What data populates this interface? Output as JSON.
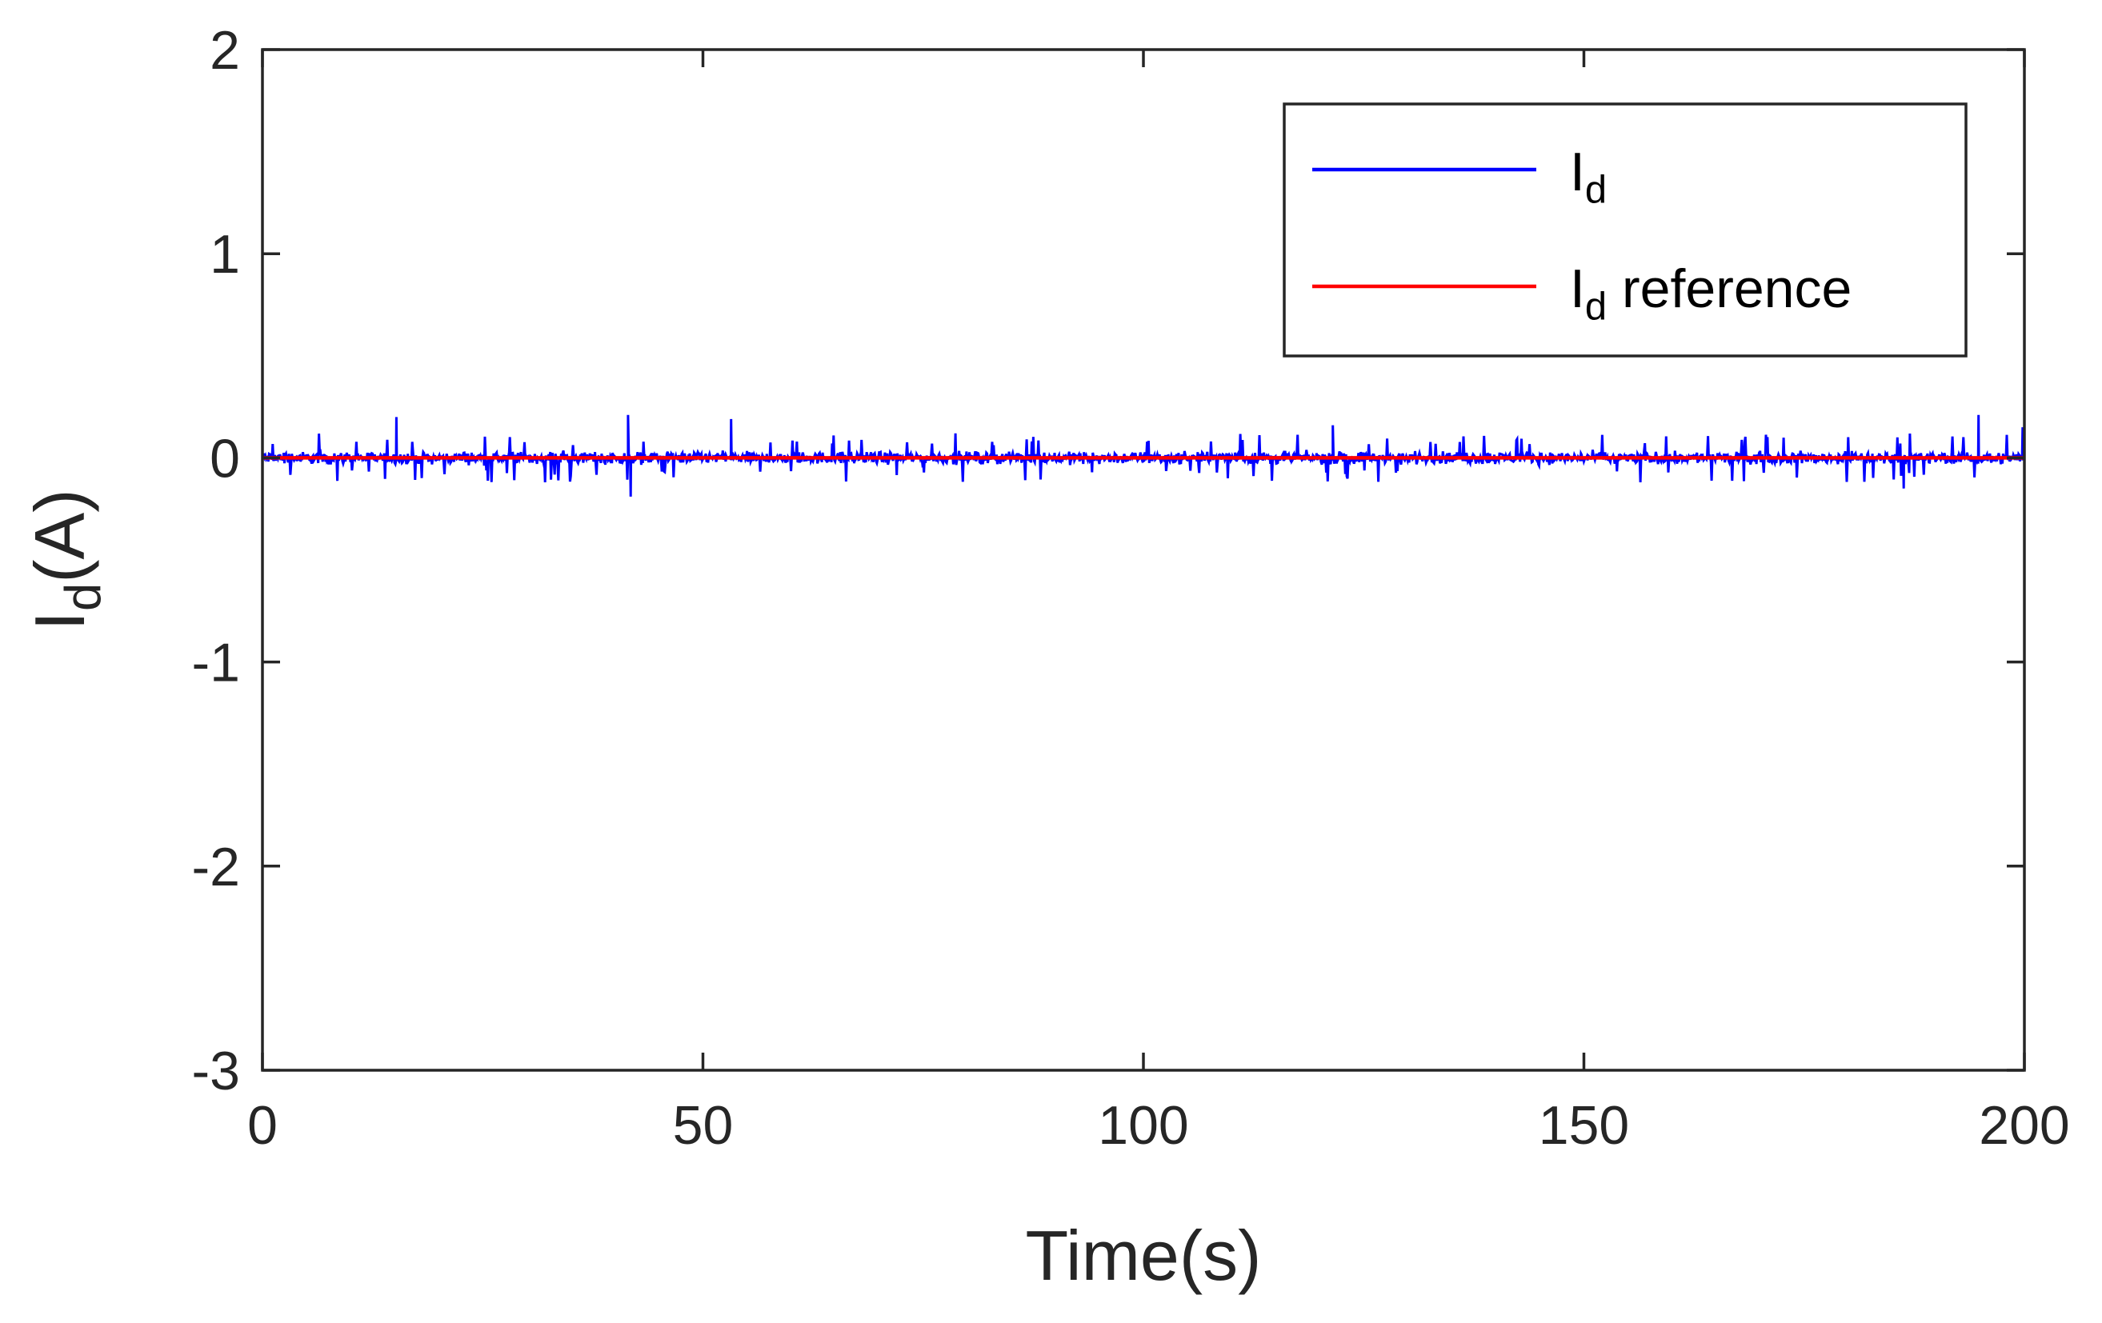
{
  "chart_data": {
    "type": "line",
    "xlabel": "Time(s)",
    "ylabel": {
      "main": "I",
      "sub": "d",
      "rest": "(A)"
    },
    "xlim": [
      0,
      200
    ],
    "ylim": [
      -3,
      2
    ],
    "xticks": [
      {
        "value": 0,
        "label": "0"
      },
      {
        "value": 50,
        "label": "50"
      },
      {
        "value": 100,
        "label": "100"
      },
      {
        "value": 150,
        "label": "150"
      },
      {
        "value": 200,
        "label": "200"
      }
    ],
    "yticks": [
      {
        "value": -3,
        "label": "-3"
      },
      {
        "value": -2,
        "label": "-2"
      },
      {
        "value": -1,
        "label": "-1"
      },
      {
        "value": 0,
        "label": "0"
      },
      {
        "value": 1,
        "label": "1"
      },
      {
        "value": 2,
        "label": "2"
      }
    ],
    "grid": false,
    "legend_position": "top-right",
    "series": [
      {
        "name": "I_d",
        "legend": {
          "main": "I",
          "sub": "d",
          "rest": ""
        },
        "color": "#0000ff",
        "noise_band": [
          -0.06,
          0.06
        ],
        "spikes": [
          {
            "x": 15.2,
            "y": 0.2
          },
          {
            "x": 41.5,
            "y": 0.21
          },
          {
            "x": 41.8,
            "y": -0.19
          },
          {
            "x": 53.2,
            "y": 0.19
          },
          {
            "x": 121.5,
            "y": 0.16
          },
          {
            "x": 186.3,
            "y": -0.15
          },
          {
            "x": 194.8,
            "y": 0.21
          },
          {
            "x": 199.8,
            "y": 0.15
          }
        ]
      },
      {
        "name": "I_d reference",
        "legend": {
          "main": "I",
          "sub": "d",
          "rest": " reference"
        },
        "color": "#ff0000",
        "x": [
          0,
          200
        ],
        "y": [
          0,
          0
        ]
      }
    ]
  }
}
